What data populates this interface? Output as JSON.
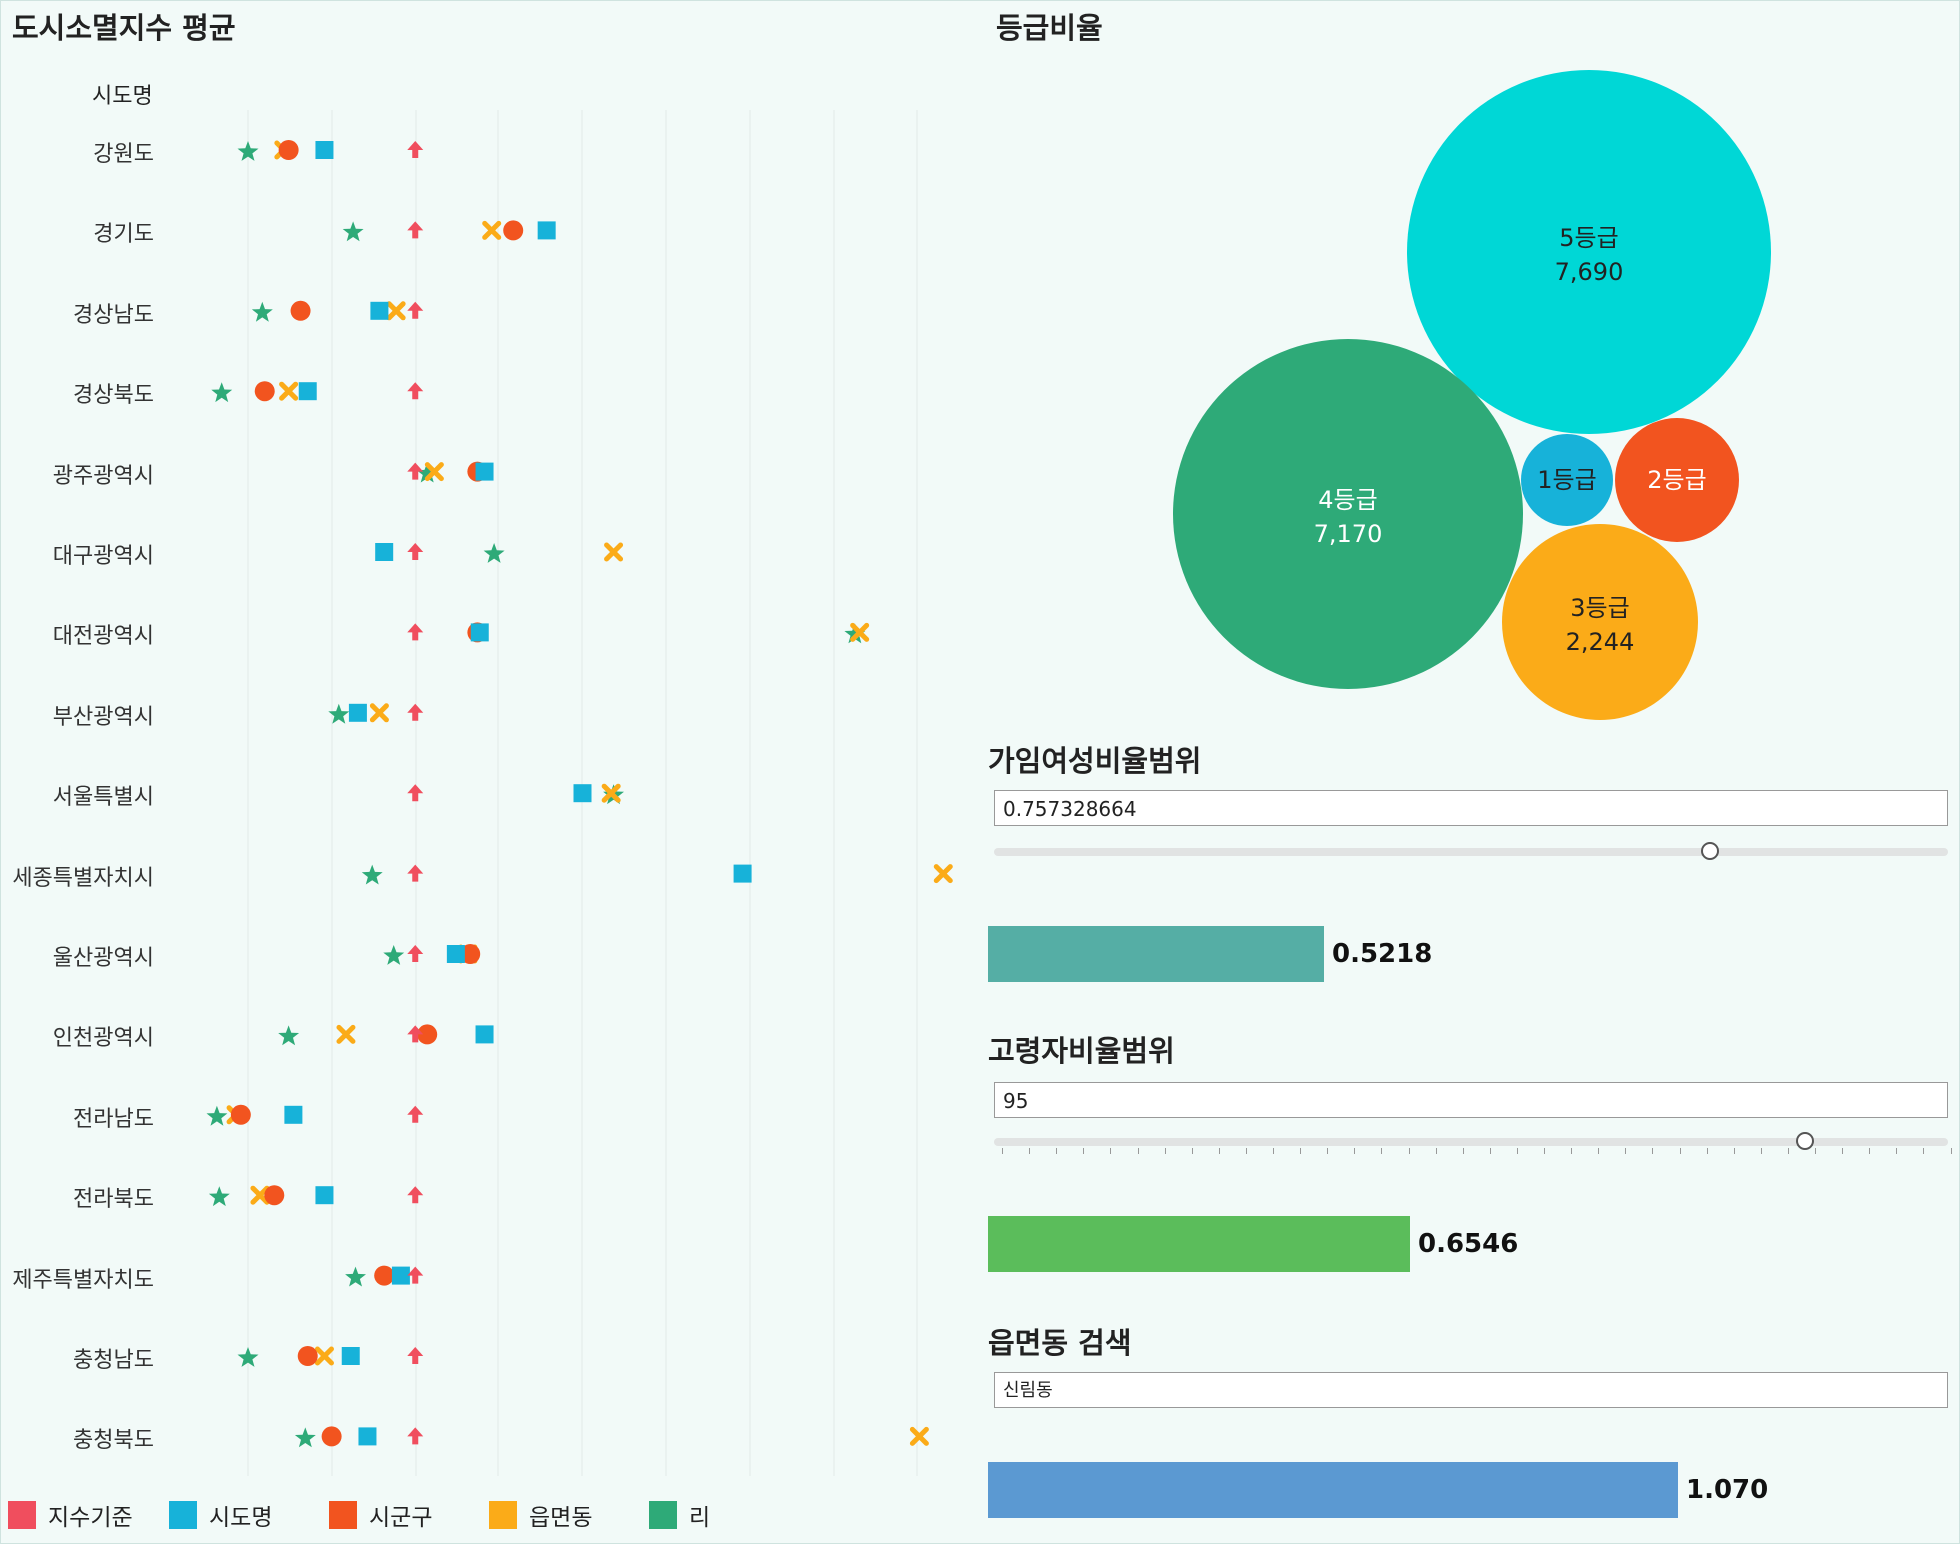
{
  "left_title": "도시소멸지수 평균",
  "column_header": "시도명",
  "right_title": "등급비율",
  "legend": [
    {
      "label": "지수기준",
      "color": "#f04e5e"
    },
    {
      "label": "시도명",
      "color": "#17b2d9"
    },
    {
      "label": "시군구",
      "color": "#f2541f"
    },
    {
      "label": "읍면동",
      "color": "#fbab18"
    },
    {
      "label": "리",
      "color": "#2eaa78"
    }
  ],
  "chart_data": [
    {
      "type": "scatter",
      "title": "도시소멸지수 평균",
      "row_header": "시도명",
      "series_names": [
        "지수기준",
        "시도명",
        "시군구",
        "읍면동",
        "리"
      ],
      "rows": [
        {
          "name": "강원도",
          "지수기준": 1.5,
          "시도명": 1.12,
          "시군구": 0.97,
          "읍면동": 0.95,
          "리": 0.8
        },
        {
          "name": "경기도",
          "지수기준": 1.5,
          "시도명": 2.05,
          "시군구": 1.91,
          "읍면동": 1.82,
          "리": 1.24
        },
        {
          "name": "경상남도",
          "지수기준": 1.5,
          "시도명": 1.35,
          "시군구": 1.02,
          "읍면동": 1.42,
          "리": 0.86
        },
        {
          "name": "경상북도",
          "지수기준": 1.5,
          "시도명": 1.05,
          "시군구": 0.87,
          "읍면동": 0.97,
          "리": 0.69
        },
        {
          "name": "광주광역시",
          "지수기준": 1.5,
          "시도명": 1.79,
          "시군구": 1.76,
          "읍면동": 1.58,
          "리": 1.55
        },
        {
          "name": "대구광역시",
          "지수기준": 1.5,
          "시도명": 1.37,
          "시군구": null,
          "읍면동": 2.33,
          "리": 1.83
        },
        {
          "name": "대전광역시",
          "지수기준": 1.5,
          "시도명": 1.77,
          "시군구": 1.76,
          "읍면동": 3.36,
          "리": 3.34
        },
        {
          "name": "부산광역시",
          "지수기준": 1.5,
          "시도명": 1.26,
          "시군구": null,
          "읍면동": 1.35,
          "리": 1.18
        },
        {
          "name": "서울특별시",
          "지수기준": 1.5,
          "시도명": 2.2,
          "시군구": null,
          "읍면동": 2.32,
          "리": 2.33
        },
        {
          "name": "세종특별자치시",
          "지수기준": 1.5,
          "시도명": 2.87,
          "시군구": null,
          "읍면동": 3.71,
          "리": 1.32
        },
        {
          "name": "울산광역시",
          "지수기준": 1.5,
          "시도명": 1.67,
          "시군구": 1.73,
          "읍면동": 1.72,
          "리": 1.41
        },
        {
          "name": "인천광역시",
          "지수기준": 1.5,
          "시도명": 1.79,
          "시군구": 1.55,
          "읍면동": 1.21,
          "리": 0.97
        },
        {
          "name": "전라남도",
          "지수기준": 1.5,
          "시도명": 0.99,
          "시군구": 0.77,
          "읍면동": 0.75,
          "리": 0.67
        },
        {
          "name": "전라북도",
          "지수기준": 1.5,
          "시도명": 1.12,
          "시군구": 0.91,
          "읍면동": 0.85,
          "리": 0.68
        },
        {
          "name": "제주특별자치도",
          "지수기준": 1.5,
          "시도명": 1.44,
          "시군구": 1.37,
          "읍면동": null,
          "리": 1.25
        },
        {
          "name": "충청남도",
          "지수기준": 1.5,
          "시도명": 1.23,
          "시군구": 1.05,
          "읍면동": 1.12,
          "리": 0.8
        },
        {
          "name": "충청북도",
          "지수기준": 1.5,
          "시도명": 1.3,
          "시군구": 1.15,
          "읍면동": 3.61,
          "리": 1.04
        }
      ],
      "gridlines": true
    },
    {
      "type": "bubble",
      "title": "등급비율",
      "items": [
        {
          "label": "5등급",
          "value": 7690,
          "value_text": "7,690",
          "color": "#00d7d6"
        },
        {
          "label": "4등급",
          "value": 7170,
          "value_text": "7,170",
          "color": "#2eaa78"
        },
        {
          "label": "3등급",
          "value": 2244,
          "value_text": "2,244",
          "color": "#fbab18"
        },
        {
          "label": "2등급",
          "value": null,
          "value_text": "",
          "color": "#f2541f"
        },
        {
          "label": "1등급",
          "value": null,
          "value_text": "",
          "color": "#17b2d9"
        }
      ]
    }
  ],
  "filters": {
    "fertility": {
      "title": "가임여성비율범위",
      "input_value": "0.757328664",
      "slider_fraction": 0.75,
      "bar_value": 0.5218,
      "bar_text": "0.5218",
      "bar_color": "#55aea5"
    },
    "elderly": {
      "title": "고령자비율범위",
      "input_value": "95",
      "slider_fraction": 0.85,
      "bar_value": 0.6546,
      "bar_text": "0.6546",
      "bar_color": "#5bbd5b"
    },
    "town": {
      "title": "읍면동 검색",
      "input_value": "신림동",
      "bar_value": 1.07,
      "bar_text": "1.070",
      "bar_color": "#5b99d2"
    }
  }
}
